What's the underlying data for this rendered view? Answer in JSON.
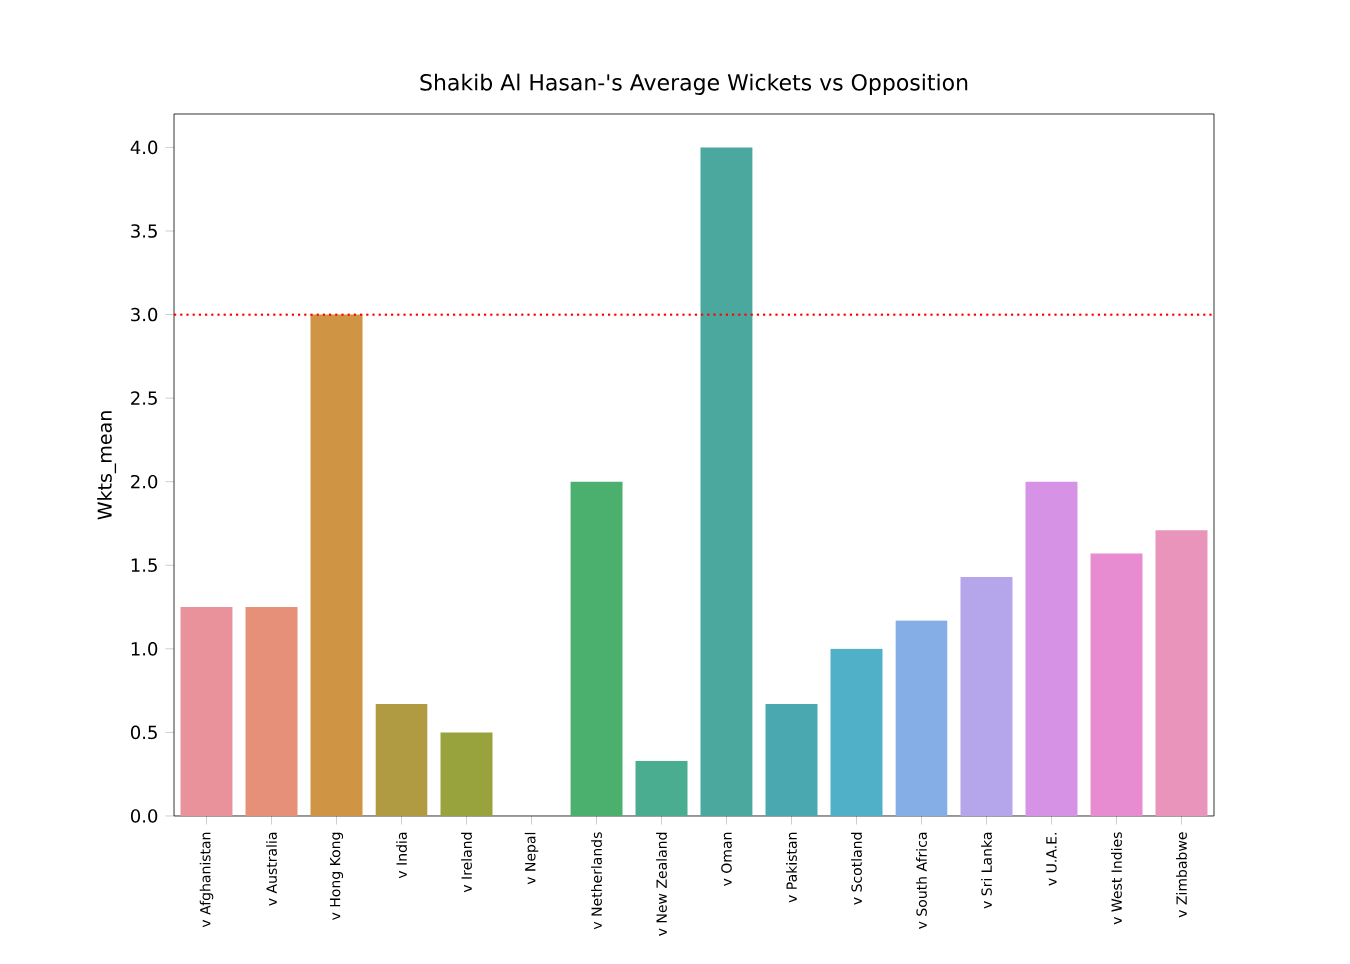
{
  "chart_data": {
    "type": "bar",
    "title": "Shakib Al Hasan-'s Average Wickets vs Opposition",
    "ylabel": "Wkts_mean",
    "categories": [
      "v Afghanistan",
      "v Australia",
      "v Hong Kong",
      "v India",
      "v Ireland",
      "v Nepal",
      "v Netherlands",
      "v New Zealand",
      "v Oman",
      "v Pakistan",
      "v Scotland",
      "v South Africa",
      "v Sri Lanka",
      "v U.A.E.",
      "v West Indies",
      "v Zimbabwe"
    ],
    "values": [
      1.25,
      1.25,
      3.0,
      0.67,
      0.5,
      0,
      2.0,
      0.33,
      4.0,
      0.67,
      1.0,
      1.17,
      1.43,
      2.0,
      1.57,
      1.71
    ],
    "colors": [
      "#e9929b",
      "#e6907a",
      "#cf9444",
      "#b09b43",
      "#98a33d",
      "#73aa3e",
      "#4bb06e",
      "#4bad90",
      "#4ba89f",
      "#4aa9b0",
      "#4fb0c8",
      "#84aee5",
      "#b5a6ec",
      "#d693e6",
      "#e88cd2",
      "#e894bb"
    ],
    "ylim": [
      0,
      4.2
    ],
    "yticks": [
      {
        "value": 0,
        "label": "0.0"
      },
      {
        "value": 0.5,
        "label": "0.5"
      },
      {
        "value": 1,
        "label": "1.0"
      },
      {
        "value": 1.5,
        "label": "1.5"
      },
      {
        "value": 2,
        "label": "2.0"
      },
      {
        "value": 2.5,
        "label": "2.5"
      },
      {
        "value": 3,
        "label": "3.0"
      },
      {
        "value": 3.5,
        "label": "3.5"
      },
      {
        "value": 4,
        "label": "4.0"
      }
    ],
    "ref_lines": [
      {
        "axis": "y",
        "value": 3.0,
        "color": "#ff0000",
        "line_style": "dotted"
      }
    ]
  }
}
